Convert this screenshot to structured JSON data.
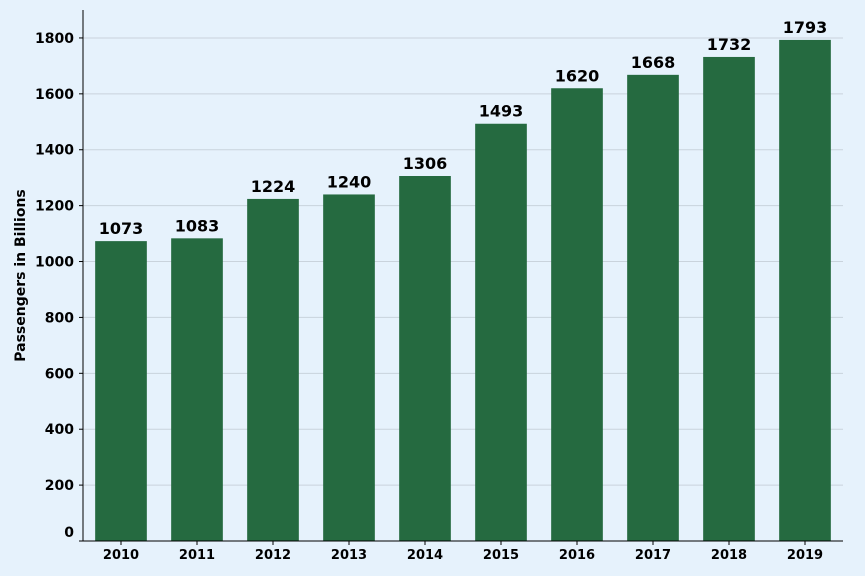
{
  "chart_data": {
    "type": "bar",
    "title": "",
    "xlabel": "",
    "ylabel": "Passengers in Billions",
    "categories": [
      "2010",
      "2011",
      "2012",
      "2013",
      "2014",
      "2015",
      "2016",
      "2017",
      "2018",
      "2019"
    ],
    "values": [
      1073,
      1083,
      1224,
      1240,
      1306,
      1493,
      1620,
      1668,
      1732,
      1793
    ],
    "ylim": [
      0,
      1900
    ],
    "yticks": [
      0,
      200,
      400,
      600,
      800,
      1000,
      1200,
      1400,
      1600,
      1800
    ],
    "grid": true,
    "legend": "none",
    "bar_color": "#256a40",
    "background_color": "#e6f2fc"
  }
}
